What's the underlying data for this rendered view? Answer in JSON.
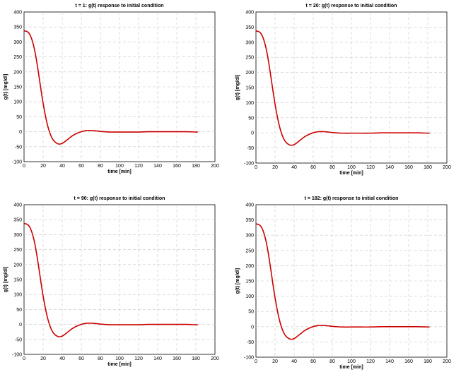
{
  "chart_data": [
    {
      "type": "line",
      "title": "t = 1: g(t) response to initial condition",
      "xlabel": "time [min]",
      "ylabel": "g(t) [mg/dl]",
      "xlim": [
        0,
        200
      ],
      "ylim": [
        -100,
        400
      ],
      "xticks": [
        0,
        20,
        40,
        60,
        80,
        100,
        120,
        140,
        160,
        180,
        200
      ],
      "yticks": [
        -100,
        -50,
        0,
        50,
        100,
        150,
        200,
        250,
        300,
        350,
        400
      ],
      "grid": true,
      "color": "#cc0000",
      "series": [
        {
          "x": [
            0,
            2,
            4,
            6,
            8,
            10,
            12,
            14,
            16,
            18,
            20,
            22,
            24,
            26,
            28,
            30,
            32,
            34,
            36,
            38,
            40,
            42,
            44,
            46,
            48,
            50,
            52,
            55,
            58,
            62,
            66,
            70,
            75,
            80,
            90,
            100,
            110,
            120,
            130,
            140,
            150,
            160,
            170,
            180,
            182
          ],
          "y": [
            337,
            336,
            333,
            325,
            310,
            288,
            258,
            220,
            178,
            135,
            95,
            60,
            30,
            6,
            -12,
            -25,
            -33,
            -38,
            -41,
            -41,
            -39,
            -35,
            -30,
            -25,
            -20,
            -15,
            -11,
            -6,
            -2,
            2,
            4,
            4,
            3,
            1,
            -1,
            -1,
            -1,
            -1,
            0,
            0,
            0,
            0,
            0,
            -1,
            -1
          ]
        }
      ]
    },
    {
      "type": "line",
      "title": "t = 20: g(t) response to initial condition",
      "xlabel": "time [min]",
      "ylabel": "g(t) [mg/dl]",
      "xlim": [
        0,
        200
      ],
      "ylim": [
        -100,
        400
      ],
      "xticks": [
        0,
        20,
        40,
        60,
        80,
        100,
        120,
        140,
        160,
        180,
        200
      ],
      "yticks": [
        -100,
        -50,
        0,
        50,
        100,
        150,
        200,
        250,
        300,
        350,
        400
      ],
      "grid": true,
      "color": "#cc0000",
      "series": [
        {
          "x": [
            0,
            2,
            4,
            6,
            8,
            10,
            12,
            14,
            16,
            18,
            20,
            22,
            24,
            26,
            28,
            30,
            32,
            34,
            36,
            38,
            40,
            42,
            44,
            46,
            48,
            50,
            52,
            55,
            58,
            62,
            66,
            70,
            75,
            80,
            90,
            100,
            110,
            120,
            130,
            140,
            150,
            160,
            170,
            180,
            182
          ],
          "y": [
            337,
            336,
            333,
            325,
            310,
            288,
            258,
            220,
            178,
            135,
            95,
            60,
            30,
            6,
            -12,
            -25,
            -33,
            -38,
            -41,
            -41,
            -39,
            -35,
            -30,
            -25,
            -20,
            -15,
            -11,
            -6,
            -2,
            2,
            4,
            4,
            3,
            1,
            -1,
            -1,
            -1,
            -1,
            0,
            0,
            0,
            0,
            0,
            -1,
            -1
          ]
        }
      ]
    },
    {
      "type": "line",
      "title": "t = 90: g(t) response to initial condition",
      "xlabel": "time [min]",
      "ylabel": "g(t) [mg/dl]",
      "xlim": [
        0,
        200
      ],
      "ylim": [
        -100,
        400
      ],
      "xticks": [
        0,
        20,
        40,
        60,
        80,
        100,
        120,
        140,
        160,
        180,
        200
      ],
      "yticks": [
        -100,
        -50,
        0,
        50,
        100,
        150,
        200,
        250,
        300,
        350,
        400
      ],
      "grid": true,
      "color": "#cc0000",
      "series": [
        {
          "x": [
            0,
            2,
            4,
            6,
            8,
            10,
            12,
            14,
            16,
            18,
            20,
            22,
            24,
            26,
            28,
            30,
            32,
            34,
            36,
            38,
            40,
            42,
            44,
            46,
            48,
            50,
            52,
            55,
            58,
            62,
            66,
            70,
            75,
            80,
            90,
            100,
            110,
            120,
            130,
            140,
            150,
            160,
            170,
            180,
            182
          ],
          "y": [
            337,
            336,
            333,
            325,
            310,
            288,
            258,
            220,
            178,
            135,
            95,
            60,
            30,
            6,
            -12,
            -25,
            -33,
            -38,
            -41,
            -41,
            -39,
            -35,
            -30,
            -25,
            -20,
            -15,
            -11,
            -6,
            -2,
            2,
            4,
            4,
            3,
            1,
            -1,
            -1,
            -1,
            -1,
            0,
            0,
            0,
            0,
            0,
            -1,
            -1
          ]
        }
      ]
    },
    {
      "type": "line",
      "title": "t = 182: g(t) response to initial condition",
      "xlabel": "time [min]",
      "ylabel": "g(t) [mg/dl]",
      "xlim": [
        0,
        200
      ],
      "ylim": [
        -100,
        400
      ],
      "xticks": [
        0,
        20,
        40,
        60,
        80,
        100,
        120,
        140,
        160,
        180,
        200
      ],
      "yticks": [
        -100,
        -50,
        0,
        50,
        100,
        150,
        200,
        250,
        300,
        350,
        400
      ],
      "grid": true,
      "color": "#cc0000",
      "series": [
        {
          "x": [
            0,
            2,
            4,
            6,
            8,
            10,
            12,
            14,
            16,
            18,
            20,
            22,
            24,
            26,
            28,
            30,
            32,
            34,
            36,
            38,
            40,
            42,
            44,
            46,
            48,
            50,
            52,
            55,
            58,
            62,
            66,
            70,
            75,
            80,
            90,
            100,
            110,
            120,
            130,
            140,
            150,
            160,
            170,
            180,
            182
          ],
          "y": [
            337,
            336,
            333,
            325,
            310,
            288,
            258,
            220,
            178,
            135,
            95,
            60,
            30,
            6,
            -12,
            -25,
            -33,
            -38,
            -41,
            -41,
            -39,
            -35,
            -30,
            -25,
            -20,
            -15,
            -11,
            -6,
            -2,
            2,
            4,
            4,
            3,
            1,
            -1,
            -1,
            -1,
            -1,
            0,
            0,
            0,
            0,
            0,
            -1,
            -1
          ]
        }
      ]
    }
  ]
}
